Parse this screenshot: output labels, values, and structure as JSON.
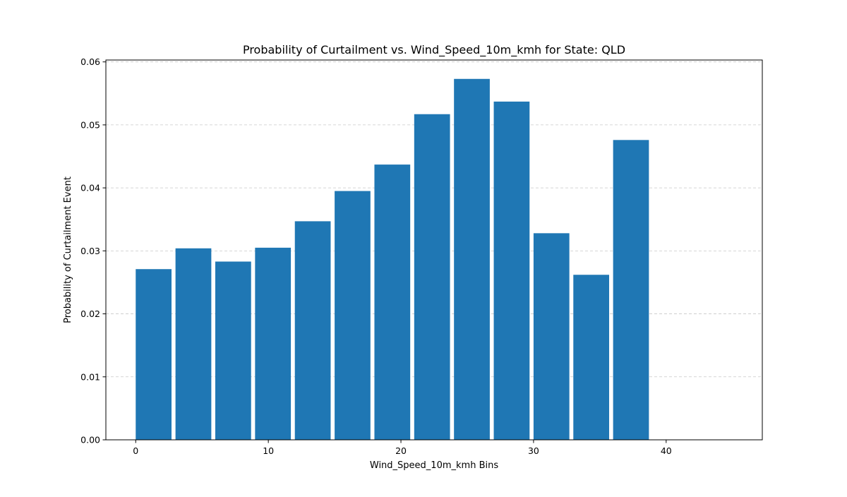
{
  "chart_data": {
    "type": "bar",
    "title": "Probability of Curtailment vs. Wind_Speed_10m_kmh for State: QLD",
    "xlabel": "Wind_Speed_10m_kmh Bins",
    "ylabel": "Probability of Curtailment Event",
    "xlim": [
      -2.25,
      47.25
    ],
    "ylim": [
      0,
      0.0603
    ],
    "bin_width": 3,
    "bar_fraction": 0.9,
    "x": [
      0,
      3,
      6,
      9,
      12,
      15,
      18,
      21,
      24,
      27,
      30,
      33,
      36
    ],
    "values": [
      0.0271,
      0.0304,
      0.0283,
      0.0305,
      0.0347,
      0.0395,
      0.0437,
      0.0517,
      0.0573,
      0.0537,
      0.0328,
      0.0262,
      0.0476
    ],
    "xticks": [
      0,
      10,
      20,
      30,
      40
    ],
    "xtick_labels": [
      "0",
      "10",
      "20",
      "30",
      "40"
    ],
    "yticks": [
      0,
      0.01,
      0.02,
      0.03,
      0.04,
      0.05,
      0.06
    ],
    "ytick_labels": [
      "0.00",
      "0.01",
      "0.02",
      "0.03",
      "0.04",
      "0.05",
      "0.06"
    ],
    "grid": "y-dashed",
    "bar_color": "#1f77b4",
    "grid_color": "#c8c8c8"
  }
}
